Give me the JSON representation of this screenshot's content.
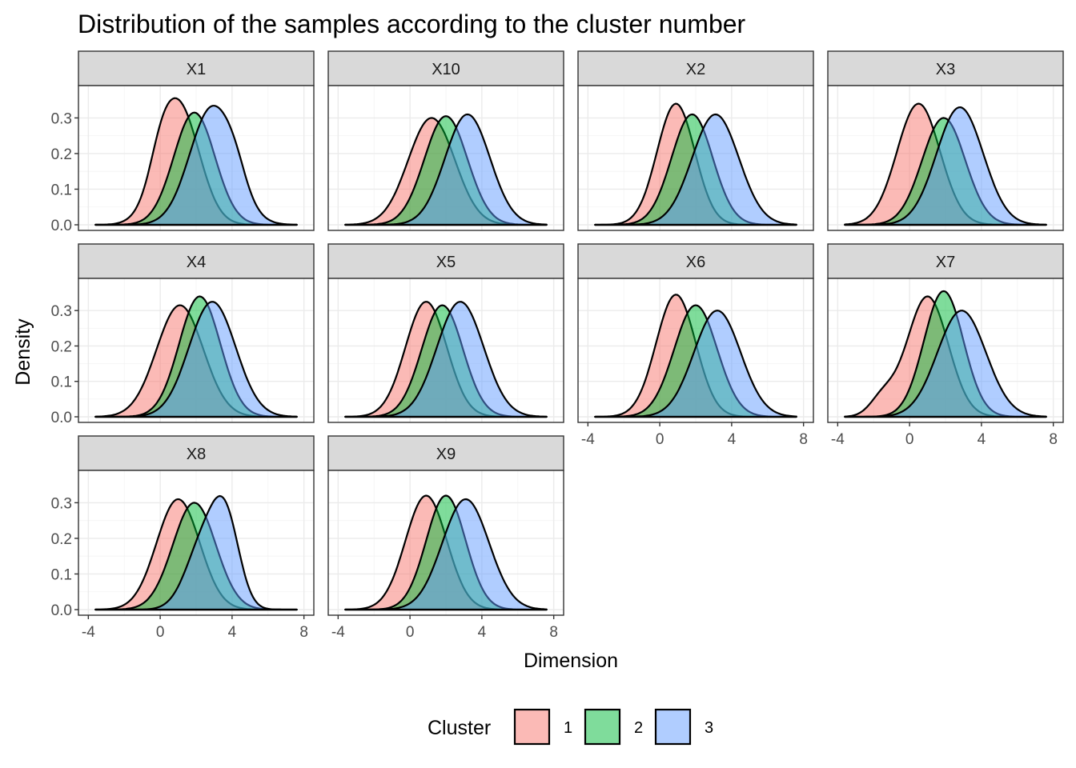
{
  "chart_data": {
    "type": "area",
    "subtype": "faceted density plot",
    "title": "Distribution of the samples according to the cluster number",
    "xlabel": "Dimension",
    "ylabel": "Density",
    "xlim": [
      -4,
      8
    ],
    "ylim": [
      0,
      0.35
    ],
    "x_ticks": [
      "-4",
      "0",
      "4",
      "8"
    ],
    "y_ticks": [
      "0.0",
      "0.1",
      "0.2",
      "0.3"
    ],
    "grid": true,
    "facet_columns": 4,
    "legend": {
      "title": "Cluster",
      "position": "bottom",
      "items": [
        {
          "label": "1",
          "color": "#F8766D"
        },
        {
          "label": "2",
          "color": "#00BA38"
        },
        {
          "label": "3",
          "color": "#619CFF"
        }
      ]
    },
    "fill_opacity": 0.5,
    "panels": [
      {
        "label": "X1",
        "series": [
          {
            "cluster": "1",
            "components": [
              {
                "mu": 1.0,
                "sd": 1.15,
                "h": 0.34
              },
              {
                "mu": 0.0,
                "sd": 0.6,
                "h": 0.05
              }
            ]
          },
          {
            "cluster": "2",
            "components": [
              {
                "mu": 1.9,
                "sd": 1.15,
                "h": 0.315
              }
            ]
          },
          {
            "cluster": "3",
            "components": [
              {
                "mu": 2.9,
                "sd": 1.25,
                "h": 0.33
              },
              {
                "mu": 4.2,
                "sd": 0.6,
                "h": 0.04
              }
            ]
          }
        ]
      },
      {
        "label": "X10",
        "series": [
          {
            "cluster": "1",
            "components": [
              {
                "mu": 1.2,
                "sd": 1.3,
                "h": 0.3
              }
            ]
          },
          {
            "cluster": "2",
            "components": [
              {
                "mu": 2.0,
                "sd": 1.2,
                "h": 0.305
              }
            ]
          },
          {
            "cluster": "3",
            "components": [
              {
                "mu": 3.2,
                "sd": 1.25,
                "h": 0.31
              }
            ]
          }
        ]
      },
      {
        "label": "X2",
        "series": [
          {
            "cluster": "1",
            "components": [
              {
                "mu": 0.9,
                "sd": 1.05,
                "h": 0.34
              }
            ]
          },
          {
            "cluster": "2",
            "components": [
              {
                "mu": 1.8,
                "sd": 1.15,
                "h": 0.31
              }
            ]
          },
          {
            "cluster": "3",
            "components": [
              {
                "mu": 3.1,
                "sd": 1.3,
                "h": 0.31
              }
            ]
          }
        ]
      },
      {
        "label": "X3",
        "series": [
          {
            "cluster": "1",
            "components": [
              {
                "mu": 0.5,
                "sd": 1.2,
                "h": 0.34
              }
            ]
          },
          {
            "cluster": "2",
            "components": [
              {
                "mu": 1.9,
                "sd": 1.2,
                "h": 0.3
              }
            ]
          },
          {
            "cluster": "3",
            "components": [
              {
                "mu": 2.8,
                "sd": 1.3,
                "h": 0.33
              }
            ]
          }
        ]
      },
      {
        "label": "X4",
        "series": [
          {
            "cluster": "1",
            "components": [
              {
                "mu": 1.1,
                "sd": 1.3,
                "h": 0.315
              }
            ]
          },
          {
            "cluster": "2",
            "components": [
              {
                "mu": 2.2,
                "sd": 1.15,
                "h": 0.34
              }
            ]
          },
          {
            "cluster": "3",
            "components": [
              {
                "mu": 2.9,
                "sd": 1.3,
                "h": 0.325
              }
            ]
          }
        ]
      },
      {
        "label": "X5",
        "series": [
          {
            "cluster": "1",
            "components": [
              {
                "mu": 0.9,
                "sd": 1.15,
                "h": 0.325
              }
            ]
          },
          {
            "cluster": "2",
            "components": [
              {
                "mu": 1.8,
                "sd": 1.15,
                "h": 0.315
              }
            ]
          },
          {
            "cluster": "3",
            "components": [
              {
                "mu": 2.8,
                "sd": 1.3,
                "h": 0.325
              }
            ]
          }
        ]
      },
      {
        "label": "X6",
        "series": [
          {
            "cluster": "1",
            "components": [
              {
                "mu": 0.9,
                "sd": 1.1,
                "h": 0.345
              }
            ]
          },
          {
            "cluster": "2",
            "components": [
              {
                "mu": 2.0,
                "sd": 1.2,
                "h": 0.315
              }
            ]
          },
          {
            "cluster": "3",
            "components": [
              {
                "mu": 3.2,
                "sd": 1.3,
                "h": 0.3
              }
            ]
          }
        ]
      },
      {
        "label": "X7",
        "series": [
          {
            "cluster": "1",
            "components": [
              {
                "mu": 1.0,
                "sd": 1.15,
                "h": 0.34
              },
              {
                "mu": -1.5,
                "sd": 0.7,
                "h": 0.05
              }
            ]
          },
          {
            "cluster": "2",
            "components": [
              {
                "mu": 1.9,
                "sd": 1.1,
                "h": 0.355
              }
            ]
          },
          {
            "cluster": "3",
            "components": [
              {
                "mu": 2.9,
                "sd": 1.35,
                "h": 0.3
              }
            ]
          }
        ]
      },
      {
        "label": "X8",
        "series": [
          {
            "cluster": "1",
            "components": [
              {
                "mu": 1.0,
                "sd": 1.2,
                "h": 0.31
              }
            ]
          },
          {
            "cluster": "2",
            "components": [
              {
                "mu": 1.9,
                "sd": 1.2,
                "h": 0.3
              }
            ]
          },
          {
            "cluster": "3",
            "components": [
              {
                "mu": 2.5,
                "sd": 1.0,
                "h": 0.2
              },
              {
                "mu": 3.7,
                "sd": 0.75,
                "h": 0.2
              }
            ]
          }
        ]
      },
      {
        "label": "X9",
        "series": [
          {
            "cluster": "1",
            "components": [
              {
                "mu": 0.9,
                "sd": 1.15,
                "h": 0.32
              }
            ]
          },
          {
            "cluster": "2",
            "components": [
              {
                "mu": 2.0,
                "sd": 1.1,
                "h": 0.32
              }
            ]
          },
          {
            "cluster": "3",
            "components": [
              {
                "mu": 3.1,
                "sd": 1.3,
                "h": 0.31
              }
            ]
          }
        ]
      }
    ]
  }
}
